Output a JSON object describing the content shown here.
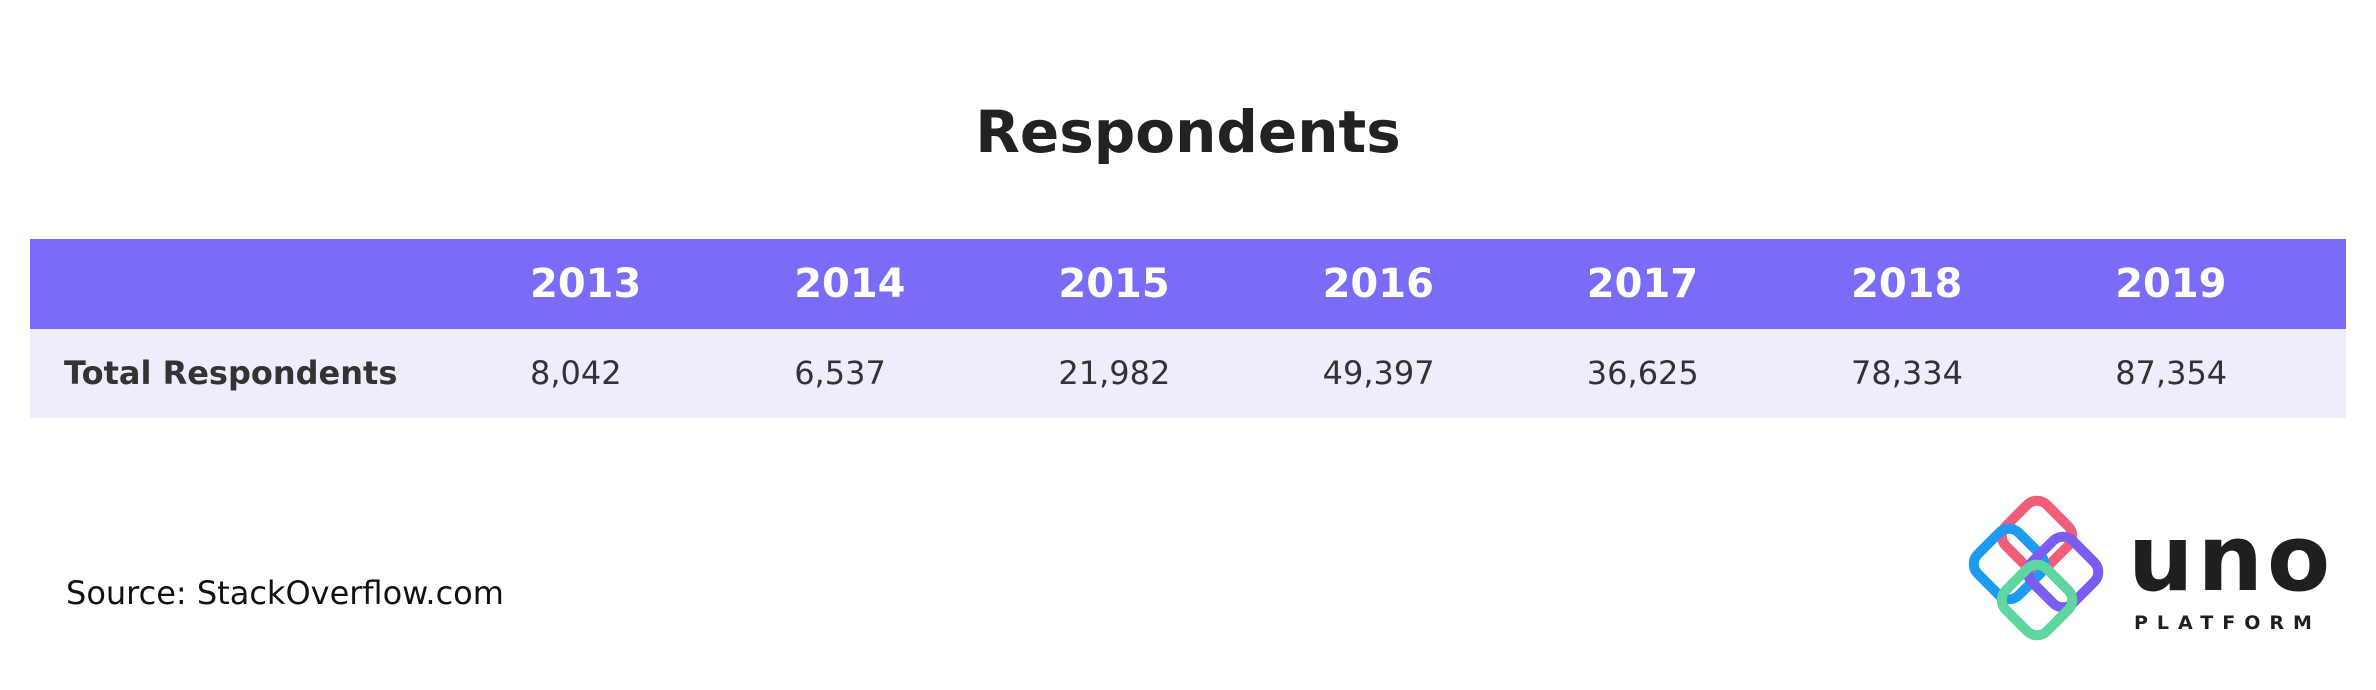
{
  "title": "Respondents",
  "table": {
    "columns": [
      "2013",
      "2014",
      "2015",
      "2016",
      "2017",
      "2018",
      "2019"
    ],
    "rows": [
      {
        "label": "Total Respondents",
        "values": [
          "8,042",
          "6,537",
          "21,982",
          "49,397",
          "36,625",
          "78,334",
          "87,354"
        ]
      }
    ]
  },
  "footer": {
    "source": "Source: StackOverflow.com"
  },
  "logo": {
    "name": "uno",
    "tagline": "PLATFORM"
  }
}
